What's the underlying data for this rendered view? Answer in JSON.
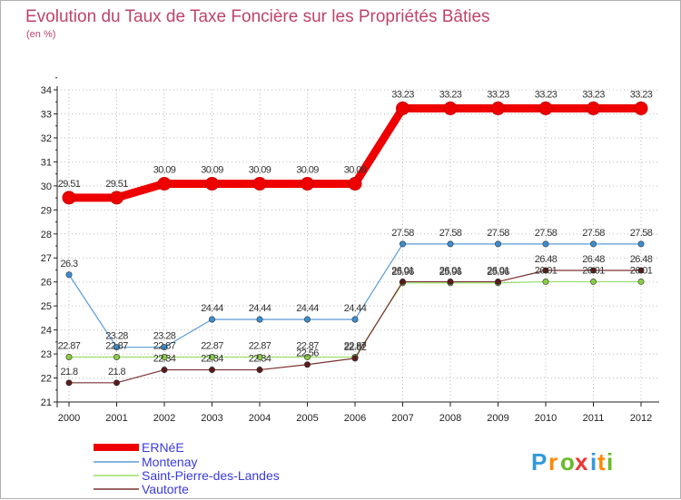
{
  "chart_data": {
    "type": "line",
    "title": "Evolution du Taux de Taxe Foncière sur les Propriétés Bâties",
    "subtitle": "(en %)",
    "xlabel": "",
    "ylabel": "",
    "categories": [
      "2000",
      "2001",
      "2002",
      "2003",
      "2004",
      "2005",
      "2006",
      "2007",
      "2008",
      "2009",
      "2010",
      "2011",
      "2012"
    ],
    "ylim": [
      21,
      34
    ],
    "yticks": [
      "21",
      "22",
      "23",
      "24",
      "25",
      "26",
      "27",
      "28",
      "29",
      "30",
      "31",
      "32",
      "33",
      "34"
    ],
    "grid": "horizontal-dotted",
    "legend_position": "bottom-left",
    "series": [
      {
        "name": "ERNéE",
        "color": "#ee0000",
        "values": [
          29.51,
          29.51,
          30.09,
          30.09,
          30.09,
          30.09,
          30.09,
          33.23,
          33.23,
          33.23,
          33.23,
          33.23,
          33.23
        ],
        "labels": [
          "29.51",
          "29.51",
          "30.09",
          "30.09",
          "30.09",
          "30.09",
          "30.09",
          "33.23",
          "33.23",
          "33.23",
          "33.23",
          "33.23",
          "33.23"
        ]
      },
      {
        "name": "Montenay",
        "color": "#5b9bd5",
        "marker": "#3a8ed0",
        "values": [
          26.3,
          23.28,
          23.28,
          24.44,
          24.44,
          24.44,
          24.44,
          27.58,
          27.58,
          27.58,
          27.58,
          27.58,
          27.58
        ],
        "labels": [
          "26.3",
          "23.28",
          "23.28",
          "24.44",
          "24.44",
          "24.44",
          "24.44",
          "27.58",
          "27.58",
          "27.58",
          "27.58",
          "27.58",
          "27.58"
        ]
      },
      {
        "name": "Saint-Pierre-des-Landes",
        "color": "#99dd66",
        "marker": "#88cc44",
        "values": [
          22.87,
          22.87,
          22.87,
          22.87,
          22.87,
          22.87,
          22.87,
          25.96,
          25.96,
          25.96,
          26.01,
          26.01,
          26.01
        ],
        "labels": [
          "22.87",
          "22.87",
          "22.87",
          "22.87",
          "22.87",
          "22.87",
          "22.87",
          "25.96",
          "25.96",
          "25.96",
          "26.01",
          "26.01",
          "26.01"
        ]
      },
      {
        "name": "Vautorte",
        "color": "#7a3030",
        "marker": "#5a1a1a",
        "values": [
          21.8,
          21.8,
          22.34,
          22.34,
          22.34,
          22.56,
          22.82,
          26.01,
          26.01,
          26.01,
          26.48,
          26.48,
          26.48
        ],
        "labels": [
          "21.8",
          "21.8",
          "22.34",
          "22.34",
          "22.34",
          "22.56",
          "22.82",
          "26.01",
          "26.01",
          "26.01",
          "26.48",
          "26.48",
          "26.48"
        ]
      }
    ]
  },
  "logo": {
    "letters": [
      "P",
      "r",
      "o",
      "x",
      "i",
      "t",
      "i"
    ],
    "colors": [
      "#3399dd",
      "#ff8800",
      "#66bb22",
      "#ee3333",
      "#3399dd",
      "#ff8800",
      "#66bb22"
    ]
  }
}
